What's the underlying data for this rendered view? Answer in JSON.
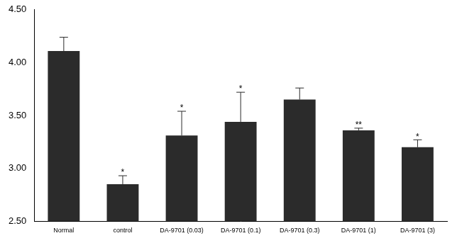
{
  "chart_data": {
    "type": "bar",
    "categories": [
      "Normal",
      "control",
      "DA-9701 (0.03)",
      "DA-9701 (0.1)",
      "DA-9701 (0.3)",
      "DA-9701 (1)",
      "DA-9701 (3)"
    ],
    "values": [
      4.11,
      2.85,
      3.31,
      3.44,
      3.65,
      3.36,
      3.2
    ],
    "errors": [
      0.13,
      0.08,
      0.23,
      0.28,
      0.11,
      0.02,
      0.07
    ],
    "annotations": [
      null,
      "*",
      "*",
      "*",
      null,
      "**",
      "*"
    ],
    "color": "#2b2b2b",
    "ylim": [
      2.5,
      4.5
    ],
    "yticks": [
      {
        "value": 2.5,
        "label": "2.50"
      },
      {
        "value": 3.0,
        "label": "3.00"
      },
      {
        "value": 3.5,
        "label": "3.50"
      },
      {
        "value": 4.0,
        "label": "4.00"
      },
      {
        "value": 4.5,
        "label": "4.50"
      }
    ],
    "grid": false
  }
}
